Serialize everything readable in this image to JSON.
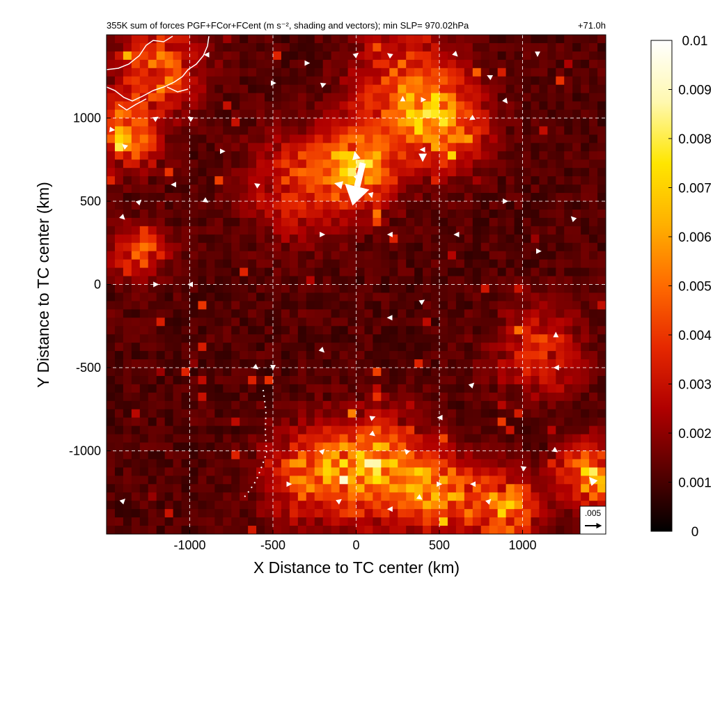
{
  "chart_data": {
    "type": "heatmap",
    "title": "355K sum of forces PGF+FCor+FCent (m s⁻², shading and vectors); min SLP= 970.02hPa",
    "time_label": "+71.0h",
    "xlabel": "X Distance to TC center (km)",
    "ylabel": "Y Distance to TC center (km)",
    "xlim": [
      -1500,
      1500
    ],
    "ylim": [
      -1500,
      1500
    ],
    "x_ticks": [
      -1000,
      -500,
      0,
      500,
      1000
    ],
    "y_ticks": [
      -1000,
      -500,
      0,
      500,
      1000
    ],
    "x_tick_labels": [
      "-1000",
      "-500",
      "0",
      "500",
      "1000"
    ],
    "y_tick_labels": [
      "-1000",
      "-500",
      "0",
      "500",
      "1000"
    ],
    "grid": true,
    "colorbar": {
      "min": 0,
      "max": 0.01,
      "ticks": [
        0,
        0.001,
        0.002,
        0.003,
        0.004,
        0.005,
        0.006,
        0.007,
        0.008,
        0.009,
        0.01
      ],
      "tick_labels": [
        "0",
        "0.001",
        "0.002",
        "0.003",
        "0.004",
        "0.005",
        "0.006",
        "0.007",
        "0.008",
        "0.009",
        "0.01"
      ],
      "colors": [
        "#000000",
        "#5a0000",
        "#b00000",
        "#e62800",
        "#ff6a00",
        "#ffb000",
        "#ffe600",
        "#fff8b0",
        "#ffffff"
      ]
    },
    "reference_vector": {
      "label": ".005",
      "magnitude": 0.005
    },
    "hotspots": [
      {
        "x": 0,
        "y": 700,
        "r": 220,
        "v": 0.006
      },
      {
        "x": 500,
        "y": 950,
        "r": 250,
        "v": 0.005
      },
      {
        "x": 100,
        "y": -1100,
        "r": 280,
        "v": 0.006
      },
      {
        "x": 500,
        "y": -1250,
        "r": 220,
        "v": 0.005
      },
      {
        "x": -1380,
        "y": 900,
        "r": 180,
        "v": 0.005
      },
      {
        "x": 1420,
        "y": -1150,
        "r": 180,
        "v": 0.006
      },
      {
        "x": -1200,
        "y": 1300,
        "r": 260,
        "v": 0.004
      },
      {
        "x": -350,
        "y": 600,
        "r": 300,
        "v": 0.003
      },
      {
        "x": 1100,
        "y": -400,
        "r": 250,
        "v": 0.003
      },
      {
        "x": -1300,
        "y": 200,
        "r": 150,
        "v": 0.004
      },
      {
        "x": 300,
        "y": 1200,
        "r": 300,
        "v": 0.004
      },
      {
        "x": -300,
        "y": -1150,
        "r": 250,
        "v": 0.004
      },
      {
        "x": 900,
        "y": -1350,
        "r": 200,
        "v": 0.005
      }
    ],
    "vectors": [
      {
        "x": 40,
        "y": 730,
        "u": -0.0042,
        "v": -0.0175
      },
      {
        "x": 0,
        "y": 760,
        "u": -0.0004,
        "v": 0.0018
      },
      {
        "x": 10,
        "y": 640,
        "u": 0.0011,
        "v": 0.0012
      },
      {
        "x": -100,
        "y": 600,
        "u": -0.0012,
        "v": 0.0003
      },
      {
        "x": 90,
        "y": 540,
        "u": 0.0002,
        "v": -0.0008
      },
      {
        "x": 400,
        "y": 770,
        "u": 0.0,
        "v": -0.0013
      },
      {
        "x": 400,
        "y": 1110,
        "u": 0.0008,
        "v": 0.0
      },
      {
        "x": 280,
        "y": 1110,
        "u": 0.0,
        "v": 0.0009
      },
      {
        "x": 700,
        "y": 1000,
        "u": -0.0008,
        "v": -0.0005
      },
      {
        "x": 400,
        "y": 810,
        "u": -0.0006,
        "v": 0.0
      },
      {
        "x": -300,
        "y": 1330,
        "u": 0.0009,
        "v": 0.0
      },
      {
        "x": -200,
        "y": 1200,
        "u": 0.0008,
        "v": 0.0003
      },
      {
        "x": -500,
        "y": 1210,
        "u": 0.0007,
        "v": 0.0
      },
      {
        "x": -1470,
        "y": 930,
        "u": 0.0008,
        "v": -0.0001
      },
      {
        "x": -1390,
        "y": 830,
        "u": -0.0006,
        "v": 0.0005
      },
      {
        "x": 1090,
        "y": 1390,
        "u": 0.0,
        "v": -0.0009
      },
      {
        "x": 1420,
        "y": -1180,
        "u": -0.0007,
        "v": 0.0008
      },
      {
        "x": 380,
        "y": -1280,
        "u": 0.0007,
        "v": -0.0005
      },
      {
        "x": 0,
        "y": 1380,
        "u": 0.0005,
        "v": 0.0004
      },
      {
        "x": 200,
        "y": 1380,
        "u": -0.0004,
        "v": 0.0003
      },
      {
        "x": 600,
        "y": 1380,
        "u": 0.0003,
        "v": -0.0003
      },
      {
        "x": 800,
        "y": 1250,
        "u": -0.0004,
        "v": 0.0002
      },
      {
        "x": 900,
        "y": 1100,
        "u": 0.0003,
        "v": -0.0004
      },
      {
        "x": -900,
        "y": 1380,
        "u": -0.0004,
        "v": 0.0
      },
      {
        "x": -1200,
        "y": 1000,
        "u": 0.0003,
        "v": 0.0002
      },
      {
        "x": -1000,
        "y": 1000,
        "u": -0.0003,
        "v": 0.0002
      },
      {
        "x": -800,
        "y": 800,
        "u": 0.0003,
        "v": 0.0
      },
      {
        "x": -600,
        "y": 600,
        "u": -0.0003,
        "v": 0.0002
      },
      {
        "x": -900,
        "y": 500,
        "u": 0.0003,
        "v": -0.0002
      },
      {
        "x": -1100,
        "y": 600,
        "u": -0.0003,
        "v": 0.0
      },
      {
        "x": -1300,
        "y": 500,
        "u": 0.0002,
        "v": 0.0002
      },
      {
        "x": -1400,
        "y": 400,
        "u": 0.0003,
        "v": -0.0003
      },
      {
        "x": -1000,
        "y": 0,
        "u": -0.0003,
        "v": 0.0
      },
      {
        "x": -1200,
        "y": 0,
        "u": 0.0003,
        "v": 0.0
      },
      {
        "x": -600,
        "y": -500,
        "u": 0.0004,
        "v": -0.0003
      },
      {
        "x": -500,
        "y": -500,
        "u": 0.0,
        "v": -0.0005
      },
      {
        "x": -200,
        "y": -1000,
        "u": 0.0003,
        "v": 0.0003
      },
      {
        "x": 100,
        "y": -800,
        "u": 0.0005,
        "v": 0.0002
      },
      {
        "x": 100,
        "y": -900,
        "u": 0.0005,
        "v": -0.0004
      },
      {
        "x": 300,
        "y": -1000,
        "u": -0.0003,
        "v": 0.0003
      },
      {
        "x": 500,
        "y": -1200,
        "u": 0.0005,
        "v": 0.0
      },
      {
        "x": 700,
        "y": -1200,
        "u": -0.0004,
        "v": 0.0
      },
      {
        "x": 800,
        "y": -1300,
        "u": 0.0003,
        "v": 0.0003
      },
      {
        "x": 1000,
        "y": -1100,
        "u": -0.0003,
        "v": 0.0002
      },
      {
        "x": 1200,
        "y": -1000,
        "u": 0.0003,
        "v": -0.0002
      },
      {
        "x": 1200,
        "y": -300,
        "u": 0.0,
        "v": 0.0004
      },
      {
        "x": 1200,
        "y": -500,
        "u": -0.0003,
        "v": 0.0
      },
      {
        "x": 1100,
        "y": 200,
        "u": 0.0003,
        "v": 0.0
      },
      {
        "x": 1300,
        "y": 400,
        "u": -0.0002,
        "v": 0.0002
      },
      {
        "x": 900,
        "y": 500,
        "u": 0.0003,
        "v": 0.0
      },
      {
        "x": 600,
        "y": 300,
        "u": -0.0003,
        "v": 0.0
      },
      {
        "x": 400,
        "y": -100,
        "u": 0.0003,
        "v": 0.0002
      },
      {
        "x": 200,
        "y": -200,
        "u": -0.0004,
        "v": 0.0
      },
      {
        "x": -200,
        "y": -400,
        "u": 0.0002,
        "v": -0.0002
      },
      {
        "x": -200,
        "y": 300,
        "u": 0.0003,
        "v": 0.0
      },
      {
        "x": 200,
        "y": 300,
        "u": -0.0003,
        "v": 0.0
      },
      {
        "x": 700,
        "y": -600,
        "u": 0.0002,
        "v": 0.0002
      },
      {
        "x": 500,
        "y": -800,
        "u": -0.0003,
        "v": 0.0
      },
      {
        "x": -400,
        "y": -1200,
        "u": 0.0003,
        "v": 0.0
      },
      {
        "x": -100,
        "y": -1300,
        "u": 0.0004,
        "v": 0.0003
      },
      {
        "x": 200,
        "y": -1350,
        "u": -0.0003,
        "v": 0.0
      },
      {
        "x": -1400,
        "y": -1300,
        "u": 0.0004,
        "v": 0.0004
      }
    ]
  },
  "coast_label": "coastline"
}
